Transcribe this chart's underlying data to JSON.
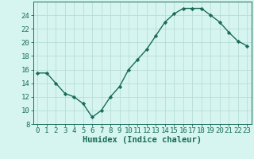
{
  "x": [
    0,
    1,
    2,
    3,
    4,
    5,
    6,
    7,
    8,
    9,
    10,
    11,
    12,
    13,
    14,
    15,
    16,
    17,
    18,
    19,
    20,
    21,
    22,
    23
  ],
  "y": [
    15.5,
    15.5,
    14.0,
    12.5,
    12.0,
    11.0,
    9.0,
    10.0,
    12.0,
    13.5,
    16.0,
    17.5,
    19.0,
    21.0,
    23.0,
    24.2,
    25.0,
    25.0,
    25.0,
    24.0,
    23.0,
    21.5,
    20.2,
    19.5
  ],
  "line_color": "#1a6b5a",
  "marker": "D",
  "marker_size": 2.2,
  "line_width": 1.0,
  "bg_color": "#d6f5f0",
  "grid_color": "#b8ddd8",
  "xlabel": "Humidex (Indice chaleur)",
  "ylim": [
    8,
    26
  ],
  "xlim": [
    -0.5,
    23.5
  ],
  "yticks": [
    8,
    10,
    12,
    14,
    16,
    18,
    20,
    22,
    24
  ],
  "xticks": [
    0,
    1,
    2,
    3,
    4,
    5,
    6,
    7,
    8,
    9,
    10,
    11,
    12,
    13,
    14,
    15,
    16,
    17,
    18,
    19,
    20,
    21,
    22,
    23
  ],
  "xlabel_fontsize": 7.5,
  "tick_fontsize": 6.5,
  "axes_color": "#1a6b5a",
  "font_family": "monospace"
}
